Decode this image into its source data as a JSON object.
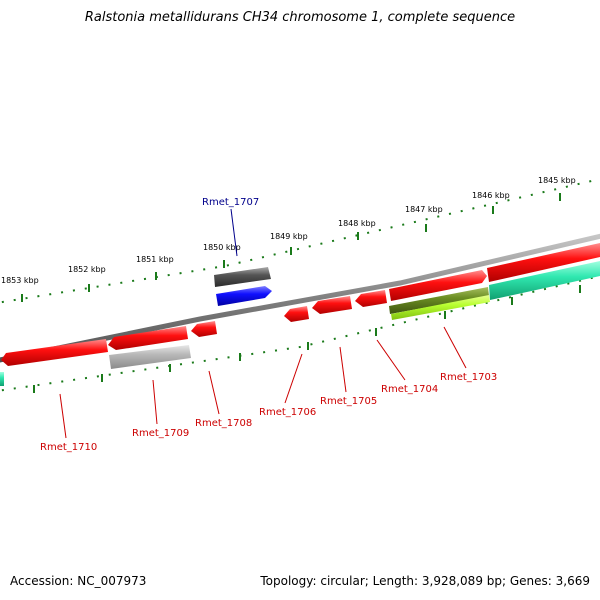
{
  "title": "Ralstonia metallidurans CH34 chromosome 1, complete sequence",
  "footer": {
    "accession": "Accession: NC_007973",
    "summary": "Topology: circular; Length: 3,928,089 bp; Genes: 3,669"
  },
  "scale_labels": [
    "1853 kbp",
    "1852 kbp",
    "1851 kbp",
    "1850 kbp",
    "1849 kbp",
    "1848 kbp",
    "1847 kbp",
    "1846 kbp",
    "1845 kbp"
  ],
  "gene_labels_forward": [
    {
      "name": "Rmet_1707",
      "color": "#00008b"
    }
  ],
  "gene_labels_reverse": [
    {
      "name": "Rmet_1710",
      "color": "#cc0000"
    },
    {
      "name": "Rmet_1709",
      "color": "#cc0000"
    },
    {
      "name": "Rmet_1708",
      "color": "#cc0000"
    },
    {
      "name": "Rmet_1706",
      "color": "#cc0000"
    },
    {
      "name": "Rmet_1705",
      "color": "#cc0000"
    },
    {
      "name": "Rmet_1704",
      "color": "#cc0000"
    },
    {
      "name": "Rmet_1703",
      "color": "#cc0000"
    }
  ],
  "colors": {
    "backbone": "#808080",
    "tick": "#1a7a1a",
    "gene_red": "#ee0000",
    "gene_blue": "#0000ee",
    "gene_dark_gray": "#555555",
    "gene_light_gray": "#b0b0b0",
    "gene_teal": "#20e0a0",
    "gene_olive": "#6b8e23",
    "gene_lime": "#b0ff30"
  }
}
